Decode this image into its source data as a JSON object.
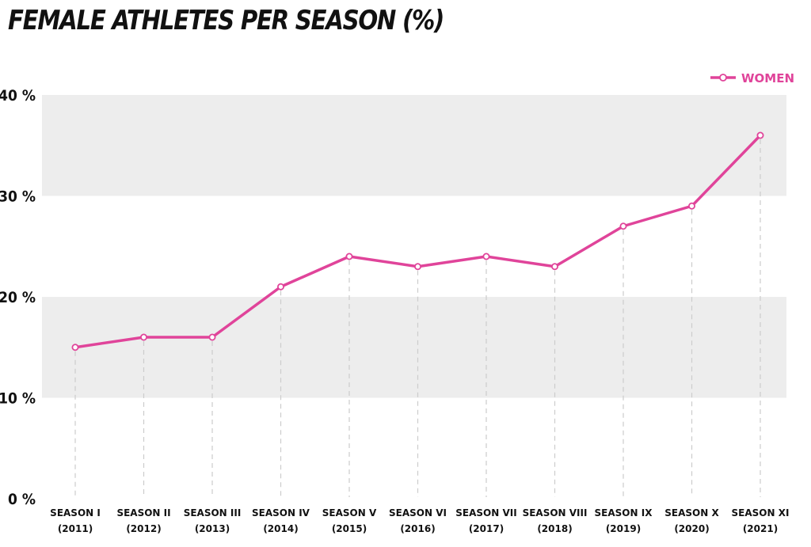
{
  "chart_data": {
    "type": "line",
    "title": "FEMALE ATHLETES PER SEASON (%)",
    "categories": [
      [
        "SEASON I",
        "(2011)"
      ],
      [
        "SEASON II",
        "(2012)"
      ],
      [
        "SEASON III",
        "(2013)"
      ],
      [
        "SEASON IV",
        "(2014)"
      ],
      [
        "SEASON V",
        "(2015)"
      ],
      [
        "SEASON VI",
        "(2016)"
      ],
      [
        "SEASON VII",
        "(2017)"
      ],
      [
        "SEASON VIII",
        "(2018)"
      ],
      [
        "SEASON IX",
        "(2019)"
      ],
      [
        "SEASON X",
        "(2020)"
      ],
      [
        "SEASON XI",
        "(2021)"
      ]
    ],
    "series": [
      {
        "name": "WOMEN",
        "color": "#e0449a",
        "values": [
          15,
          16,
          16,
          21,
          24,
          23,
          24,
          23,
          27,
          29,
          36
        ]
      }
    ],
    "yticks": [
      "0 %",
      "10 %",
      "20 %",
      "30 %",
      "40 %"
    ],
    "ylim": [
      0,
      40
    ],
    "bands": [
      [
        10,
        20
      ],
      [
        30,
        40
      ]
    ],
    "band_color": "#ededed",
    "legend_position": "top-right"
  }
}
